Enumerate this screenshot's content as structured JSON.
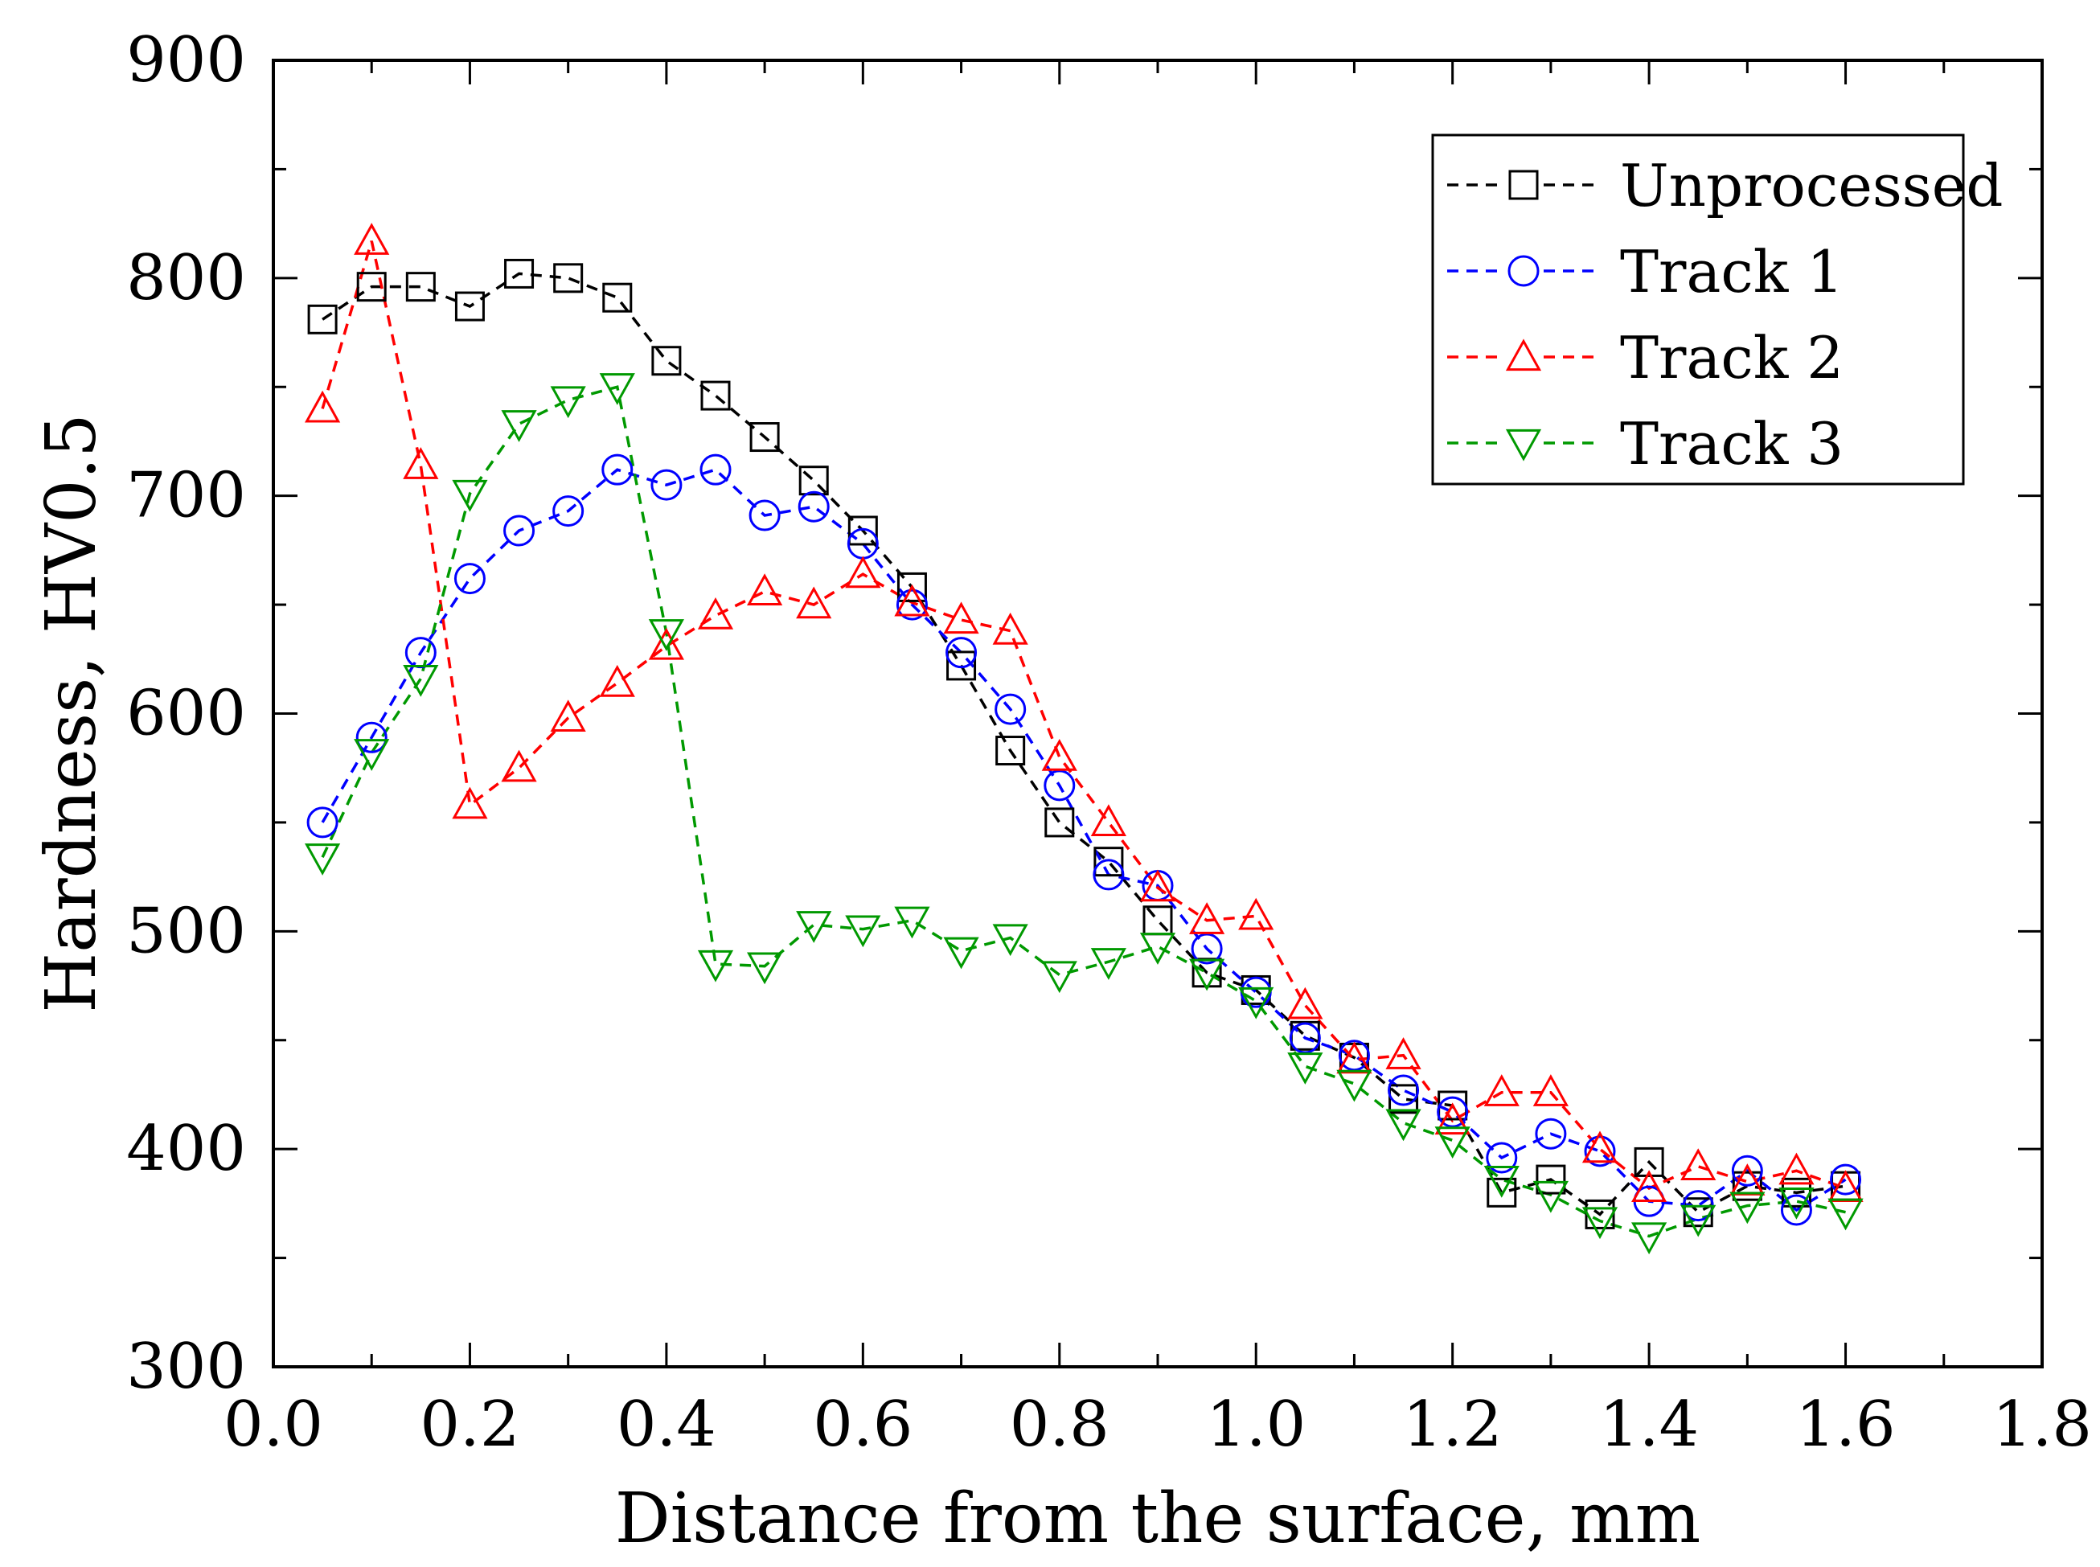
{
  "chart_data": {
    "type": "line",
    "title": "",
    "xlabel": "Distance from the surface, mm",
    "ylabel": "Hardness, HV0.5",
    "xlim": [
      0.0,
      1.8
    ],
    "ylim": [
      300,
      900
    ],
    "xticks": [
      0.0,
      0.2,
      0.4,
      0.6,
      0.8,
      1.0,
      1.2,
      1.4,
      1.6,
      1.8
    ],
    "xtick_labels": [
      "0.0",
      "0.2",
      "0.4",
      "0.6",
      "0.8",
      "1.0",
      "1.2",
      "1.4",
      "1.6",
      "1.8"
    ],
    "yticks": [
      300,
      400,
      500,
      600,
      700,
      800,
      900
    ],
    "ytick_labels": [
      "300",
      "400",
      "500",
      "600",
      "700",
      "800",
      "900"
    ],
    "grid": false,
    "legend_position": "top-right",
    "x": [
      0.05,
      0.1,
      0.15,
      0.2,
      0.25,
      0.3,
      0.35,
      0.4,
      0.45,
      0.5,
      0.55,
      0.6,
      0.65,
      0.7,
      0.75,
      0.8,
      0.85,
      0.9,
      0.95,
      1.0,
      1.05,
      1.1,
      1.15,
      1.2,
      1.25,
      1.3,
      1.35,
      1.4,
      1.45,
      1.5,
      1.55,
      1.6
    ],
    "series": [
      {
        "name": "Unprocessed",
        "color": "#000000",
        "marker": "square",
        "values": [
          781,
          796,
          796,
          787,
          802,
          800,
          791,
          762,
          746,
          727,
          707,
          684,
          658,
          622,
          583,
          550,
          532,
          505,
          481,
          473,
          452,
          442,
          423,
          420,
          380,
          386,
          370,
          394,
          371,
          383,
          380,
          383
        ]
      },
      {
        "name": "Track 1",
        "color": "#0000ff",
        "marker": "circle",
        "values": [
          550,
          589,
          628,
          662,
          684,
          693,
          712,
          705,
          712,
          691,
          695,
          678,
          650,
          628,
          602,
          567,
          526,
          521,
          492,
          472,
          451,
          443,
          427,
          417,
          396,
          407,
          399,
          376,
          374,
          390,
          372,
          386
        ]
      },
      {
        "name": "Track 2",
        "color": "#ff0000",
        "marker": "triangle-up",
        "values": [
          740,
          817,
          714,
          558,
          575,
          598,
          614,
          631,
          645,
          656,
          650,
          664,
          651,
          643,
          638,
          580,
          550,
          520,
          505,
          507,
          466,
          441,
          443,
          413,
          426,
          426,
          400,
          382,
          392,
          385,
          390,
          382
        ]
      },
      {
        "name": "Track 3",
        "color": "#009900",
        "marker": "triangle-down",
        "values": [
          534,
          582,
          616,
          701,
          733,
          744,
          750,
          637,
          485,
          484,
          503,
          501,
          505,
          491,
          497,
          480,
          486,
          493,
          481,
          468,
          438,
          430,
          412,
          404,
          386,
          379,
          367,
          360,
          368,
          374,
          376,
          371
        ]
      }
    ]
  }
}
